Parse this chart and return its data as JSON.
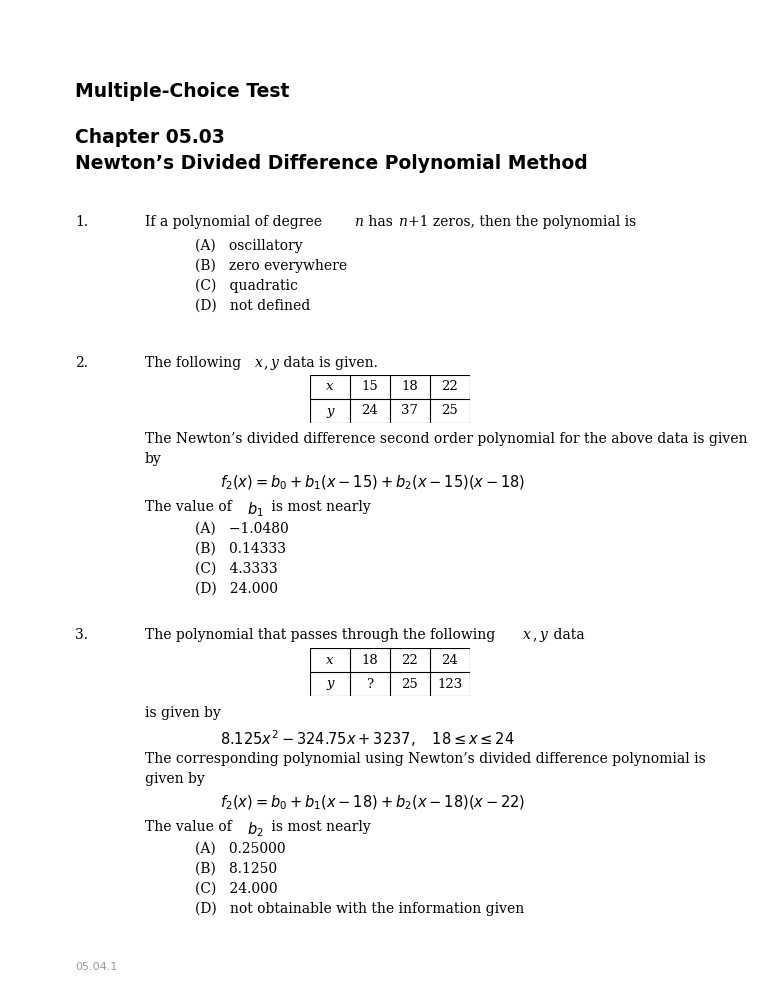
{
  "bg_color": "#ffffff",
  "title1": "Multiple-Choice Test",
  "title2": "Chapter 05.03",
  "title3": "Newton’s Divided Difference Polynomial Method",
  "footer": "05.04.1",
  "q2_table_x": [
    "x",
    "15",
    "18",
    "22"
  ],
  "q2_table_y": [
    "y",
    "24",
    "37",
    "25"
  ],
  "q3_table_x": [
    "x",
    "18",
    "22",
    "24"
  ],
  "q3_table_y": [
    "y",
    "?",
    "25",
    "123"
  ]
}
